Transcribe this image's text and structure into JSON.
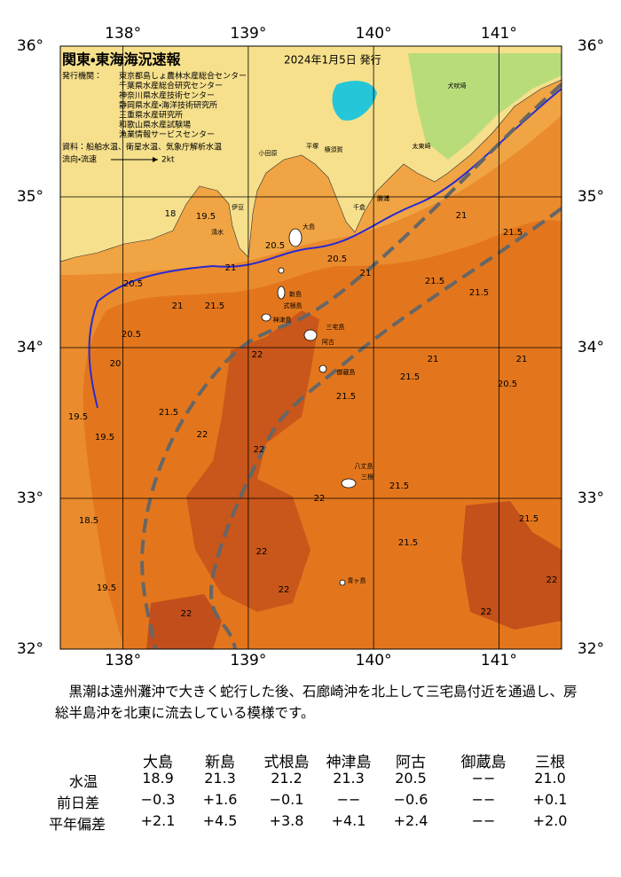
{
  "header": {
    "title": "関東・東海海況速報",
    "date": "2024年1月5日 発行",
    "issuer_label": "発行機関：",
    "agencies": [
      "東京都島しょ農林水産総合センター",
      "千葉県水産総合研究センター",
      "神奈川県水産技術センター",
      "静岡県水産・海洋技術研究所",
      "三重県水産研究所",
      "和歌山県水産試験場",
      "漁業情報サービスセンター"
    ],
    "source": "資料：船舶水温、衛星水温、気象庁解析水温",
    "flow_label": "流向・流速",
    "flow_scale": "2kt"
  },
  "map": {
    "lon_labels": [
      "138°",
      "139°",
      "140°",
      "141°"
    ],
    "lat_labels": [
      "36°",
      "35°",
      "34°",
      "33°",
      "32°"
    ],
    "place_names": [
      "大島",
      "新島",
      "式根島",
      "神津島",
      "三宅島",
      "阿古",
      "御蔵島",
      "八丈島",
      "三根",
      "青ヶ島",
      "平塚",
      "横須賀",
      "小田原",
      "千倉",
      "勝浦",
      "太東崎",
      "犬吠埼",
      "伊豆",
      "清水"
    ],
    "contour_labels": [
      "18",
      "19.5",
      "20.5",
      "21",
      "20.5",
      "21",
      "21.5",
      "20.5",
      "22",
      "21.5",
      "22",
      "22",
      "22",
      "22",
      "22",
      "22",
      "21.5",
      "21.5",
      "21.5",
      "21.5",
      "21",
      "21.5",
      "21.5",
      "21",
      "20.5",
      "21",
      "21.5",
      "22",
      "22",
      "21.5",
      "20.5",
      "21",
      "19.5",
      "19.5",
      "18.5",
      "19.5",
      "20"
    ]
  },
  "description": "黒潮は遠州灘沖で大きく蛇行した後、石廊崎沖を北上して三宅島付近を通過し、房総半島沖を北東に流去している模様です。",
  "table": {
    "columns": [
      "大島",
      "新島",
      "式根島",
      "神津島",
      "阿古",
      "御蔵島",
      "三根"
    ],
    "rows": [
      {
        "label": "水温",
        "cells": [
          "18.9",
          "21.3",
          "21.2",
          "21.3",
          "20.5",
          "−−",
          "21.0"
        ]
      },
      {
        "label": "前日差",
        "cells": [
          "−0.3",
          "+1.6",
          "−0.1",
          "−−",
          "−0.6",
          "−−",
          "+0.1"
        ]
      },
      {
        "label": "平年偏差",
        "cells": [
          "+2.1",
          "+4.5",
          "+3.8",
          "+4.1",
          "+2.4",
          "−−",
          "+2.0"
        ]
      }
    ]
  }
}
